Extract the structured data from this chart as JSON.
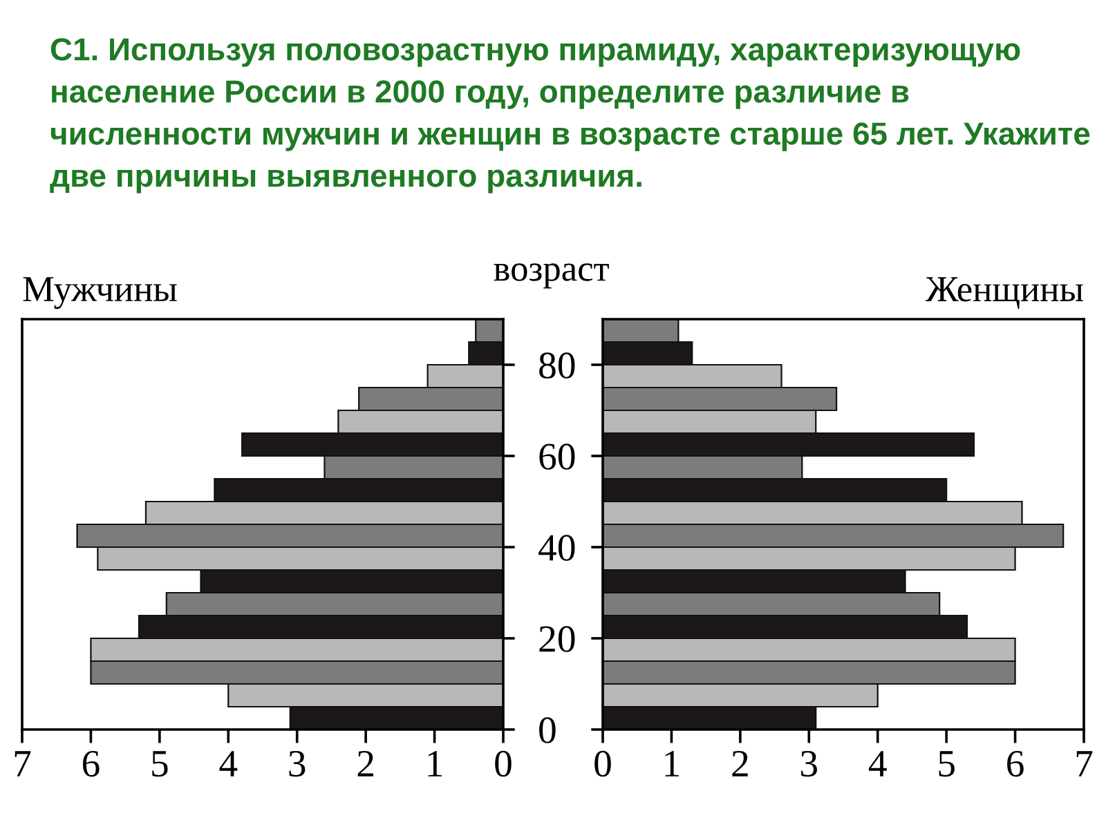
{
  "chart_data": [
    {
      "type": "bar",
      "orientation": "horizontal",
      "title": "C1. Используя половозрастную пирамиду, характеризующую население России в 2000 году, определите различие в численности мужчин и женщин в возрасте старше 65 лет. Укажите две причины выявленного различия.",
      "subtitle": "Мужчины",
      "ylabel": "возраст",
      "x": [
        2.5,
        7.5,
        12.5,
        17.5,
        22.5,
        27.5,
        32.5,
        37.5,
        42.5,
        47.5,
        52.5,
        57.5,
        62.5,
        67.5,
        72.5,
        77.5,
        82.5,
        87.5
      ],
      "values": [
        3.1,
        4.0,
        6.0,
        6.0,
        5.3,
        4.9,
        4.4,
        5.9,
        6.2,
        5.2,
        4.2,
        2.6,
        3.8,
        2.4,
        2.1,
        1.1,
        0.5,
        0.4
      ],
      "colors": [
        "#1c1818",
        "#b8b8b8",
        "#7c7c7c",
        "#b8b8b8",
        "#1c1818",
        "#7c7c7c",
        "#1c1818",
        "#b8b8b8",
        "#7c7c7c",
        "#b8b8b8",
        "#1c1818",
        "#7c7c7c",
        "#1c1818",
        "#b8b8b8",
        "#7c7c7c",
        "#b8b8b8",
        "#1c1818",
        "#7c7c7c"
      ],
      "xlim": [
        7,
        0
      ],
      "xticks": [
        7,
        6,
        5,
        4,
        3,
        2,
        1,
        0
      ],
      "ylim": [
        0,
        90
      ],
      "yticks": [
        0,
        20,
        40,
        60,
        80
      ],
      "grid": false,
      "legend": false
    },
    {
      "type": "bar",
      "orientation": "horizontal",
      "subtitle": "Женщины",
      "x": [
        2.5,
        7.5,
        12.5,
        17.5,
        22.5,
        27.5,
        32.5,
        37.5,
        42.5,
        47.5,
        52.5,
        57.5,
        62.5,
        67.5,
        72.5,
        77.5,
        82.5,
        87.5
      ],
      "values": [
        3.1,
        4.0,
        6.0,
        6.0,
        5.3,
        4.9,
        4.4,
        6.0,
        6.7,
        6.1,
        5.0,
        2.9,
        5.4,
        3.1,
        3.4,
        2.6,
        1.3,
        1.1
      ],
      "colors": [
        "#1c1818",
        "#b8b8b8",
        "#7c7c7c",
        "#b8b8b8",
        "#1c1818",
        "#7c7c7c",
        "#1c1818",
        "#b8b8b8",
        "#7c7c7c",
        "#b8b8b8",
        "#1c1818",
        "#7c7c7c",
        "#1c1818",
        "#b8b8b8",
        "#7c7c7c",
        "#b8b8b8",
        "#1c1818",
        "#7c7c7c"
      ],
      "xlim": [
        0,
        7
      ],
      "xticks": [
        0,
        1,
        2,
        3,
        4,
        5,
        6,
        7
      ],
      "ylim": [
        0,
        90
      ],
      "yticks": [
        0,
        20,
        40,
        60,
        80
      ],
      "tick_labels": "x",
      "grid": false,
      "legend": false
    }
  ]
}
